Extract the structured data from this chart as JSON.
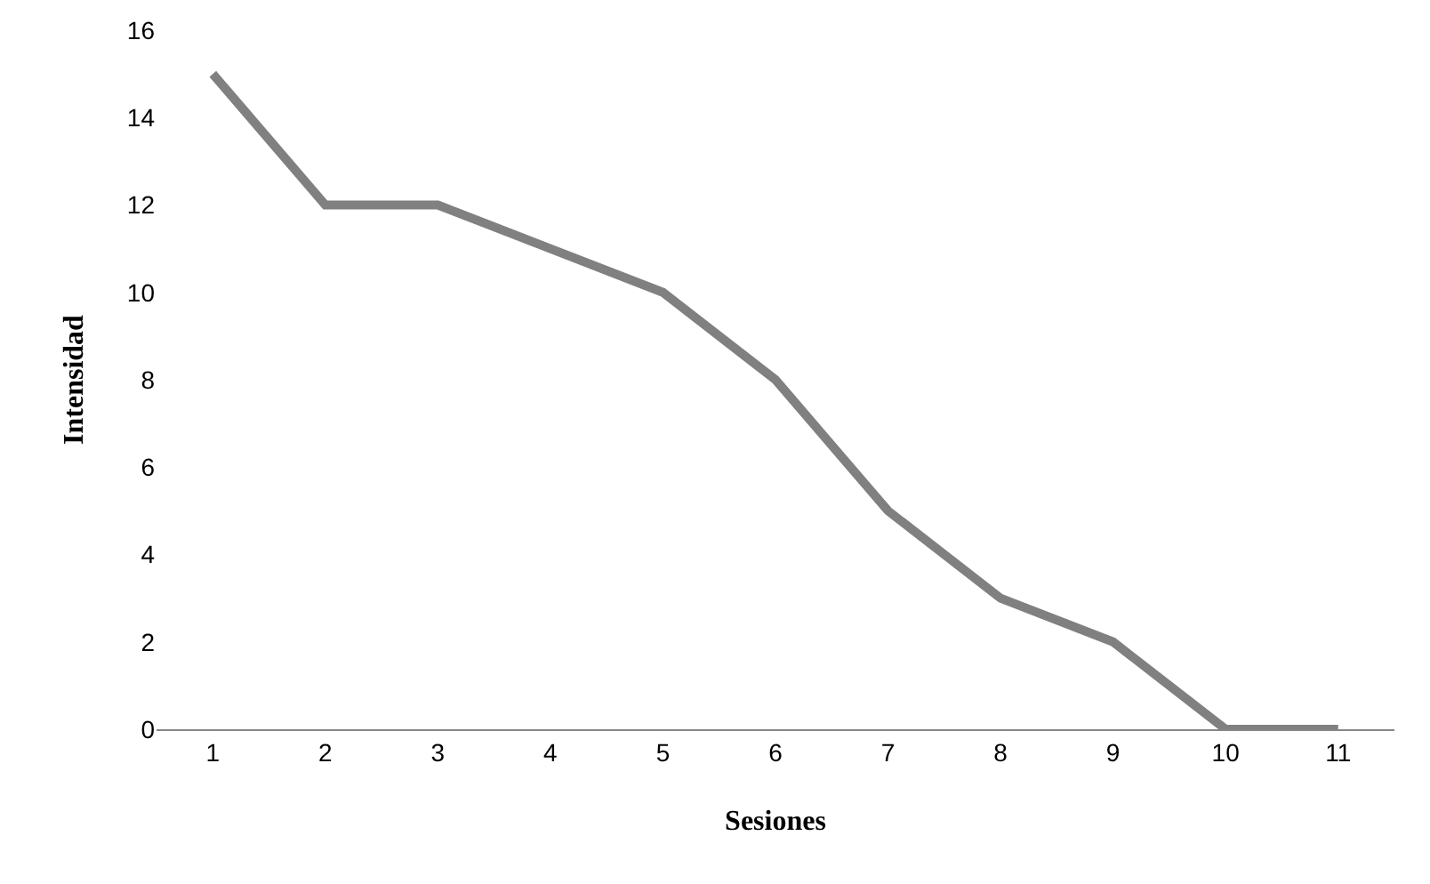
{
  "chart_data": {
    "type": "line",
    "xlabel": "Sesiones",
    "ylabel": "Intensidad",
    "categories": [
      "1",
      "2",
      "3",
      "4",
      "5",
      "6",
      "7",
      "8",
      "9",
      "10",
      "11"
    ],
    "series": [
      {
        "color": "#808080",
        "values": [
          15,
          12,
          12,
          11,
          10,
          8,
          5,
          3,
          2,
          0,
          0
        ]
      }
    ],
    "ylim": [
      0,
      16
    ],
    "yticks": [
      0,
      2,
      4,
      6,
      8,
      10,
      12,
      14,
      16
    ],
    "grid": false,
    "marker": "none",
    "line_style": "solid"
  }
}
